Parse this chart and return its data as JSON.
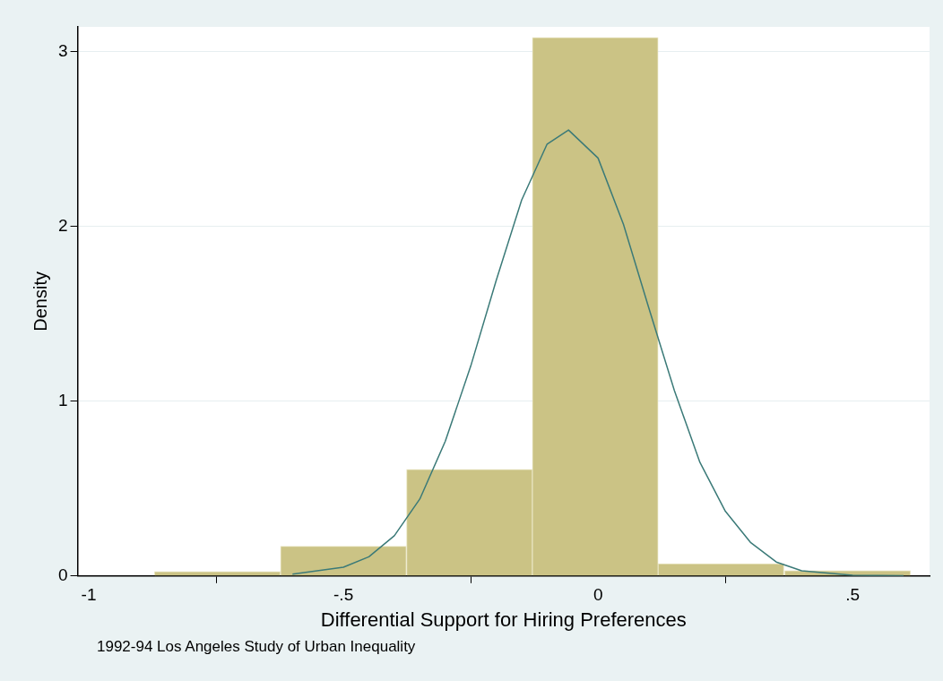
{
  "chart_data": {
    "type": "histogram",
    "xlabel": "Differential Support for Hiring Preferences",
    "ylabel": "Density",
    "bins": [
      -0.871,
      -0.624,
      -0.376,
      -0.129,
      0.118,
      0.365,
      0.615
    ],
    "values": [
      0.026,
      0.17,
      0.61,
      3.08,
      0.07,
      0.03
    ],
    "color": "#cbc385",
    "series": [
      {
        "type": "line",
        "color": "#3b7a78",
        "x": [
          -0.6,
          -0.5,
          -0.45,
          -0.4,
          -0.35,
          -0.3,
          -0.25,
          -0.2,
          -0.15,
          -0.1,
          -0.058,
          0,
          0.05,
          0.1,
          0.15,
          0.2,
          0.25,
          0.3,
          0.35,
          0.4,
          0.5,
          0.6
        ],
        "values": [
          0.01,
          0.05,
          0.11,
          0.23,
          0.44,
          0.77,
          1.2,
          1.69,
          2.15,
          2.47,
          2.55,
          2.39,
          2.01,
          1.53,
          1.06,
          0.65,
          0.37,
          0.19,
          0.08,
          0.03,
          0.004,
          0.001
        ]
      }
    ],
    "xlim": [
      -1.022,
      0.651
    ],
    "ylim": [
      0,
      3.14
    ],
    "xticks": [
      -1,
      {
        "value": -0.5,
        "label": "-.5"
      },
      0,
      {
        "value": 0.5,
        "label": ".5"
      }
    ],
    "yticks": [
      0,
      1,
      2,
      3
    ],
    "grid": "y",
    "legend": false,
    "marker": "none",
    "line_style": "solid",
    "annotations": [
      "1992-94 Los Angeles Study of Urban Inequality"
    ]
  }
}
